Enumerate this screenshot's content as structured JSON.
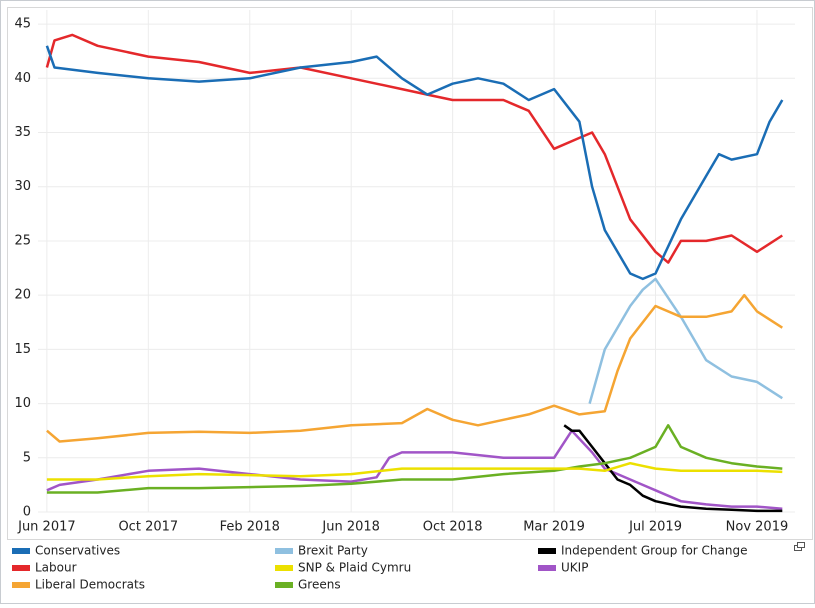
{
  "chart_data": {
    "type": "line",
    "xlim": [
      -0.35,
      29.5
    ],
    "xticks": [
      {
        "value": 0,
        "label": "Jun 2017"
      },
      {
        "value": 4,
        "label": "Oct 2017"
      },
      {
        "value": 8,
        "label": "Feb 2018"
      },
      {
        "value": 12,
        "label": "Jun 2018"
      },
      {
        "value": 16,
        "label": "Oct 2018"
      },
      {
        "value": 20,
        "label": "Mar 2019"
      },
      {
        "value": 24,
        "label": "Jul 2019"
      },
      {
        "value": 28,
        "label": "Nov 2019"
      }
    ],
    "ylim": [
      0,
      46.3
    ],
    "yticks": [
      0,
      5,
      10,
      15,
      20,
      25,
      30,
      35,
      40,
      45
    ],
    "grid": true,
    "series": [
      {
        "name": "Conservatives",
        "color": "#1a6db5",
        "x": [
          0,
          0.3,
          2,
          4,
          6,
          8,
          10,
          12,
          13,
          14,
          15,
          16,
          17,
          18,
          19,
          20,
          21,
          21.5,
          22,
          23,
          23.5,
          24,
          25,
          26,
          26.5,
          27,
          28,
          28.5,
          29
        ],
        "values": [
          43,
          41,
          40.5,
          40,
          39.7,
          40,
          41,
          41.5,
          42,
          40,
          38.5,
          39.5,
          40,
          39.5,
          38,
          39,
          36,
          30,
          26,
          22,
          21.5,
          22,
          27,
          31,
          33,
          32.5,
          33,
          36,
          38
        ]
      },
      {
        "name": "Labour",
        "color": "#e4282b",
        "x": [
          0,
          0.3,
          1,
          2,
          3,
          4,
          6,
          8,
          10,
          12,
          14,
          15,
          16,
          17,
          18,
          19,
          20,
          21,
          21.5,
          22,
          23,
          24,
          24.5,
          25,
          26,
          27,
          28,
          29
        ],
        "values": [
          41,
          43.5,
          44,
          43,
          42.5,
          42,
          41.5,
          40.5,
          41,
          40,
          39,
          38.5,
          38,
          38,
          38,
          37,
          33.5,
          34.5,
          35,
          33,
          27,
          24,
          23,
          25,
          25,
          25.5,
          24,
          25.5
        ]
      },
      {
        "name": "Liberal Democrats",
        "color": "#f5a533",
        "x": [
          0,
          0.5,
          2,
          4,
          6,
          8,
          10,
          12,
          14,
          15,
          16,
          17,
          18,
          19,
          20,
          21,
          22,
          22.5,
          23,
          24,
          25,
          26,
          27,
          27.5,
          28,
          29
        ],
        "values": [
          7.5,
          6.5,
          6.8,
          7.3,
          7.4,
          7.3,
          7.5,
          8,
          8.2,
          9.5,
          8.5,
          8,
          8.5,
          9,
          9.8,
          9,
          9.3,
          13,
          16,
          19,
          18,
          18,
          18.5,
          20,
          18.5,
          17
        ]
      },
      {
        "name": "Brexit Party",
        "color": "#8fc0e0",
        "x": [
          21.4,
          22,
          22.5,
          23,
          23.5,
          24,
          25,
          26,
          27,
          28,
          29
        ],
        "values": [
          10,
          15,
          17,
          19,
          20.5,
          21.5,
          18,
          14,
          12.5,
          12,
          10.5
        ]
      },
      {
        "name": "SNP & Plaid Cymru",
        "color": "#ece000",
        "x": [
          0,
          2,
          4,
          6,
          8,
          10,
          12,
          14,
          16,
          18,
          20,
          21,
          22,
          23,
          24,
          25,
          26,
          28,
          29
        ],
        "values": [
          3,
          3,
          3.3,
          3.5,
          3.4,
          3.3,
          3.5,
          4,
          4,
          4,
          4,
          4,
          3.8,
          4.5,
          4,
          3.8,
          3.8,
          3.8,
          3.7
        ]
      },
      {
        "name": "Greens",
        "color": "#6ab023",
        "x": [
          0,
          0.5,
          2,
          4,
          6,
          8,
          10,
          12,
          14,
          16,
          18,
          20,
          21,
          22,
          23,
          24,
          24.5,
          25,
          26,
          27,
          28,
          29
        ],
        "values": [
          1.8,
          1.8,
          1.8,
          2.2,
          2.2,
          2.3,
          2.4,
          2.6,
          3,
          3,
          3.5,
          3.8,
          4.2,
          4.5,
          5,
          6,
          8,
          6,
          5,
          4.5,
          4.2,
          4
        ]
      },
      {
        "name": "Independent Group for Change",
        "color": "#000000",
        "x": [
          20.4,
          20.7,
          21,
          21.5,
          22,
          22.5,
          23,
          23.5,
          24,
          25,
          26,
          27,
          28,
          29
        ],
        "values": [
          8,
          7.5,
          7.5,
          6,
          4.5,
          3,
          2.5,
          1.5,
          1,
          0.5,
          0.3,
          0.2,
          0.1,
          0.1
        ]
      },
      {
        "name": "UKIP",
        "color": "#a155c7",
        "x": [
          0,
          0.5,
          2,
          4,
          6,
          8,
          10,
          12,
          13,
          13.5,
          14,
          16,
          18,
          20,
          20.7,
          21.5,
          22,
          23,
          24,
          25,
          26,
          27,
          28,
          29
        ],
        "values": [
          2,
          2.5,
          3,
          3.8,
          4,
          3.5,
          3,
          2.8,
          3.2,
          5,
          5.5,
          5.5,
          5,
          5,
          7.5,
          5.5,
          4,
          3,
          2,
          1,
          0.7,
          0.5,
          0.5,
          0.3
        ]
      }
    ]
  }
}
